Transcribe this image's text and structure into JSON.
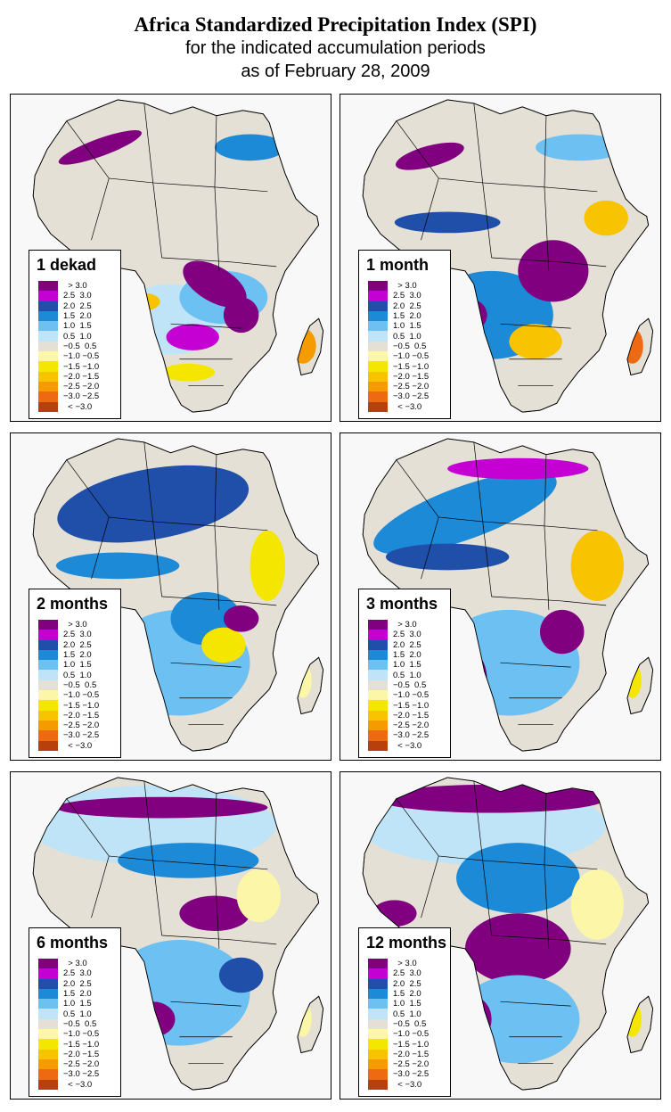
{
  "header": {
    "title": "Africa Standardized Precipitation Index (SPI)",
    "subtitle_line1": "for the indicated accumulation periods",
    "subtitle_line2": "as of February 28, 2009"
  },
  "legend": {
    "classes": [
      {
        "label": "  > 3.0",
        "color": "#800080"
      },
      {
        "label": "2.5  3.0",
        "color": "#c400d2"
      },
      {
        "label": "2.0  2.5",
        "color": "#1f4fa8"
      },
      {
        "label": "1.5  2.0",
        "color": "#1c8ad6"
      },
      {
        "label": "1.0  1.5",
        "color": "#6cc0f2"
      },
      {
        "label": "0.5  1.0",
        "color": "#bfe3f7"
      },
      {
        "label": "−0.5  0.5",
        "color": "#e4e0d6"
      },
      {
        "label": "−1.0 −0.5",
        "color": "#fbf6a8"
      },
      {
        "label": "−1.5 −1.0",
        "color": "#f5e600"
      },
      {
        "label": "−2.0 −1.5",
        "color": "#f8c300"
      },
      {
        "label": "−2.5 −2.0",
        "color": "#f59b00"
      },
      {
        "label": "−3.0 −2.5",
        "color": "#ee6a12"
      },
      {
        "label": "  < −3.0",
        "color": "#b8400c"
      }
    ]
  },
  "panels": [
    {
      "period": "1 dekad",
      "dominant": "mixed"
    },
    {
      "period": "1 month",
      "dominant": "mixed"
    },
    {
      "period": "2 months",
      "dominant": "wet"
    },
    {
      "period": "3 months",
      "dominant": "wet"
    },
    {
      "period": "6 months",
      "dominant": "wet"
    },
    {
      "period": "12 months",
      "dominant": "very wet"
    }
  ]
}
